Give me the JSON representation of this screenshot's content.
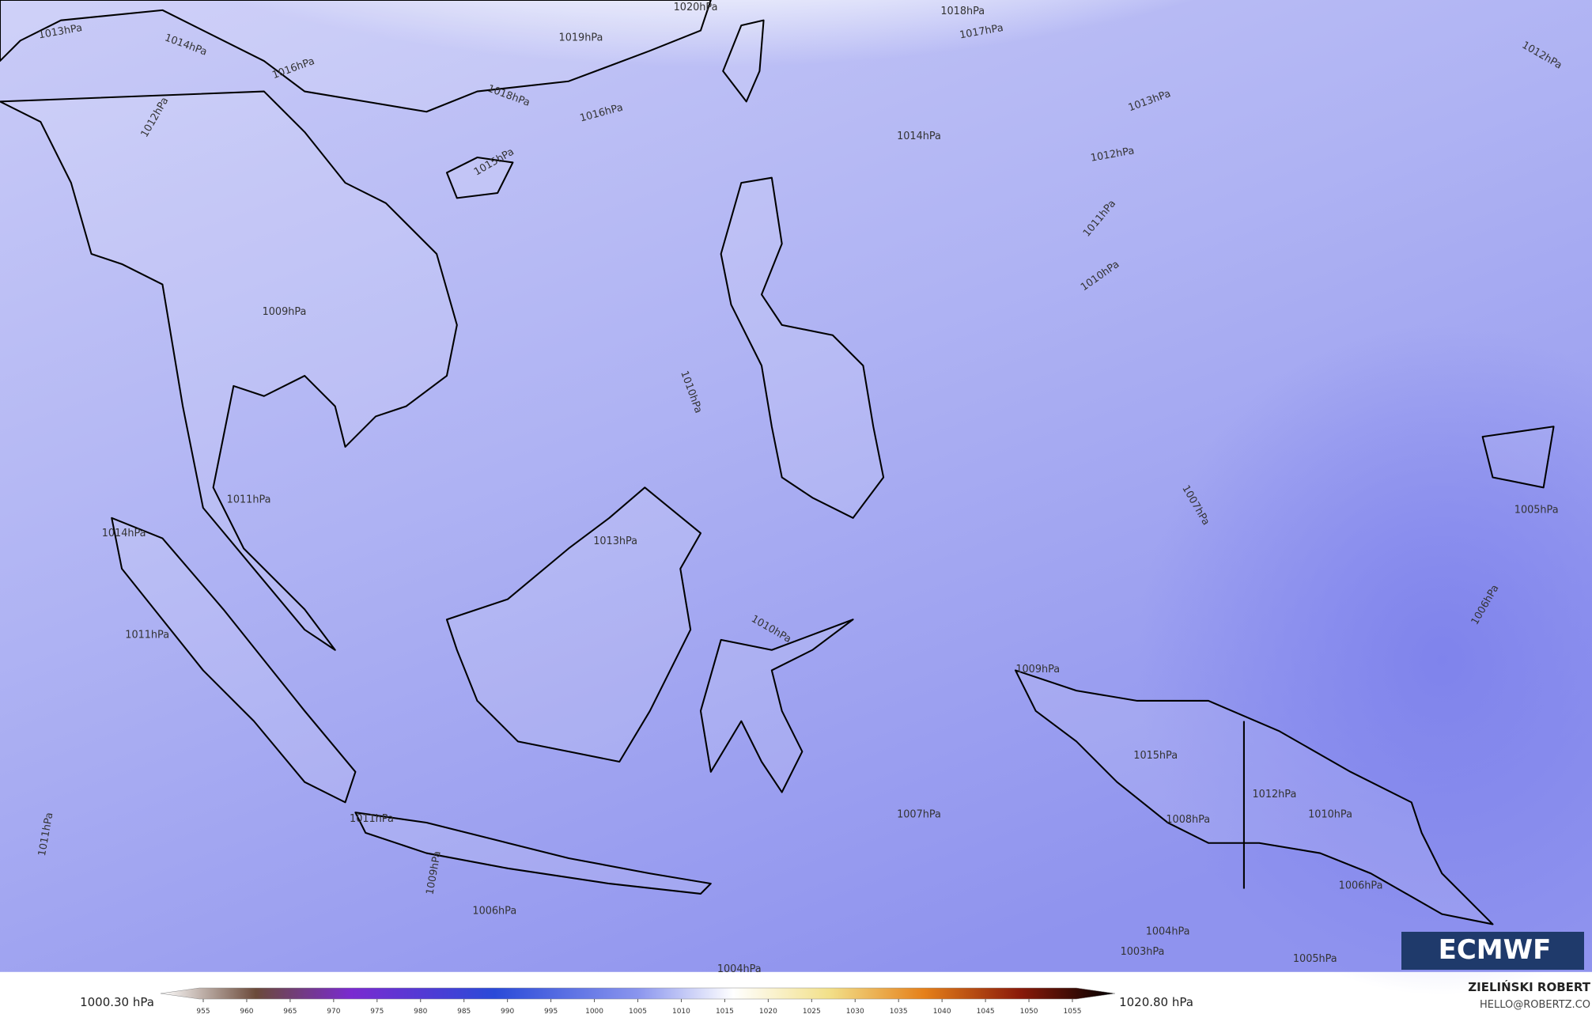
{
  "map": {
    "isobar_labels": [
      "1020hPa",
      "1018hPa",
      "1017hPa",
      "1019hPa",
      "1013hPa",
      "1014hPa",
      "1016hPa",
      "1018hPa",
      "1016hPa",
      "1015hPa",
      "1014hPa",
      "1013hPa",
      "1012hPa",
      "1012hPa",
      "1011hPa",
      "1010hPa",
      "1012hPa",
      "1009hPa",
      "1010hPa",
      "1011hPa",
      "1014hPa",
      "1013hPa",
      "1011hPa",
      "1010hPa",
      "1007hPa",
      "1005hPa",
      "1006hPa",
      "1009hPa",
      "1015hPa",
      "1012hPa",
      "1010hPa",
      "1007hPa",
      "1008hPa",
      "1011hPa",
      "1006hPa",
      "1004hPa",
      "1003hPa",
      "1004hPa",
      "1005hPa",
      "1006hPa",
      "1009hPa",
      "1011hPa"
    ]
  },
  "legend": {
    "min_label": "1000.30 hPa",
    "max_label": "1020.80 hPa",
    "ticks": [
      955,
      960,
      965,
      970,
      975,
      980,
      985,
      990,
      995,
      1000,
      1005,
      1010,
      1015,
      1020,
      1025,
      1030,
      1035,
      1040,
      1045,
      1050,
      1055
    ]
  },
  "credit": {
    "author": "ZIELIŃSKI ROBERT",
    "contact": "HELLO@ROBERTZ.CO"
  },
  "logo": "ECMWF"
}
